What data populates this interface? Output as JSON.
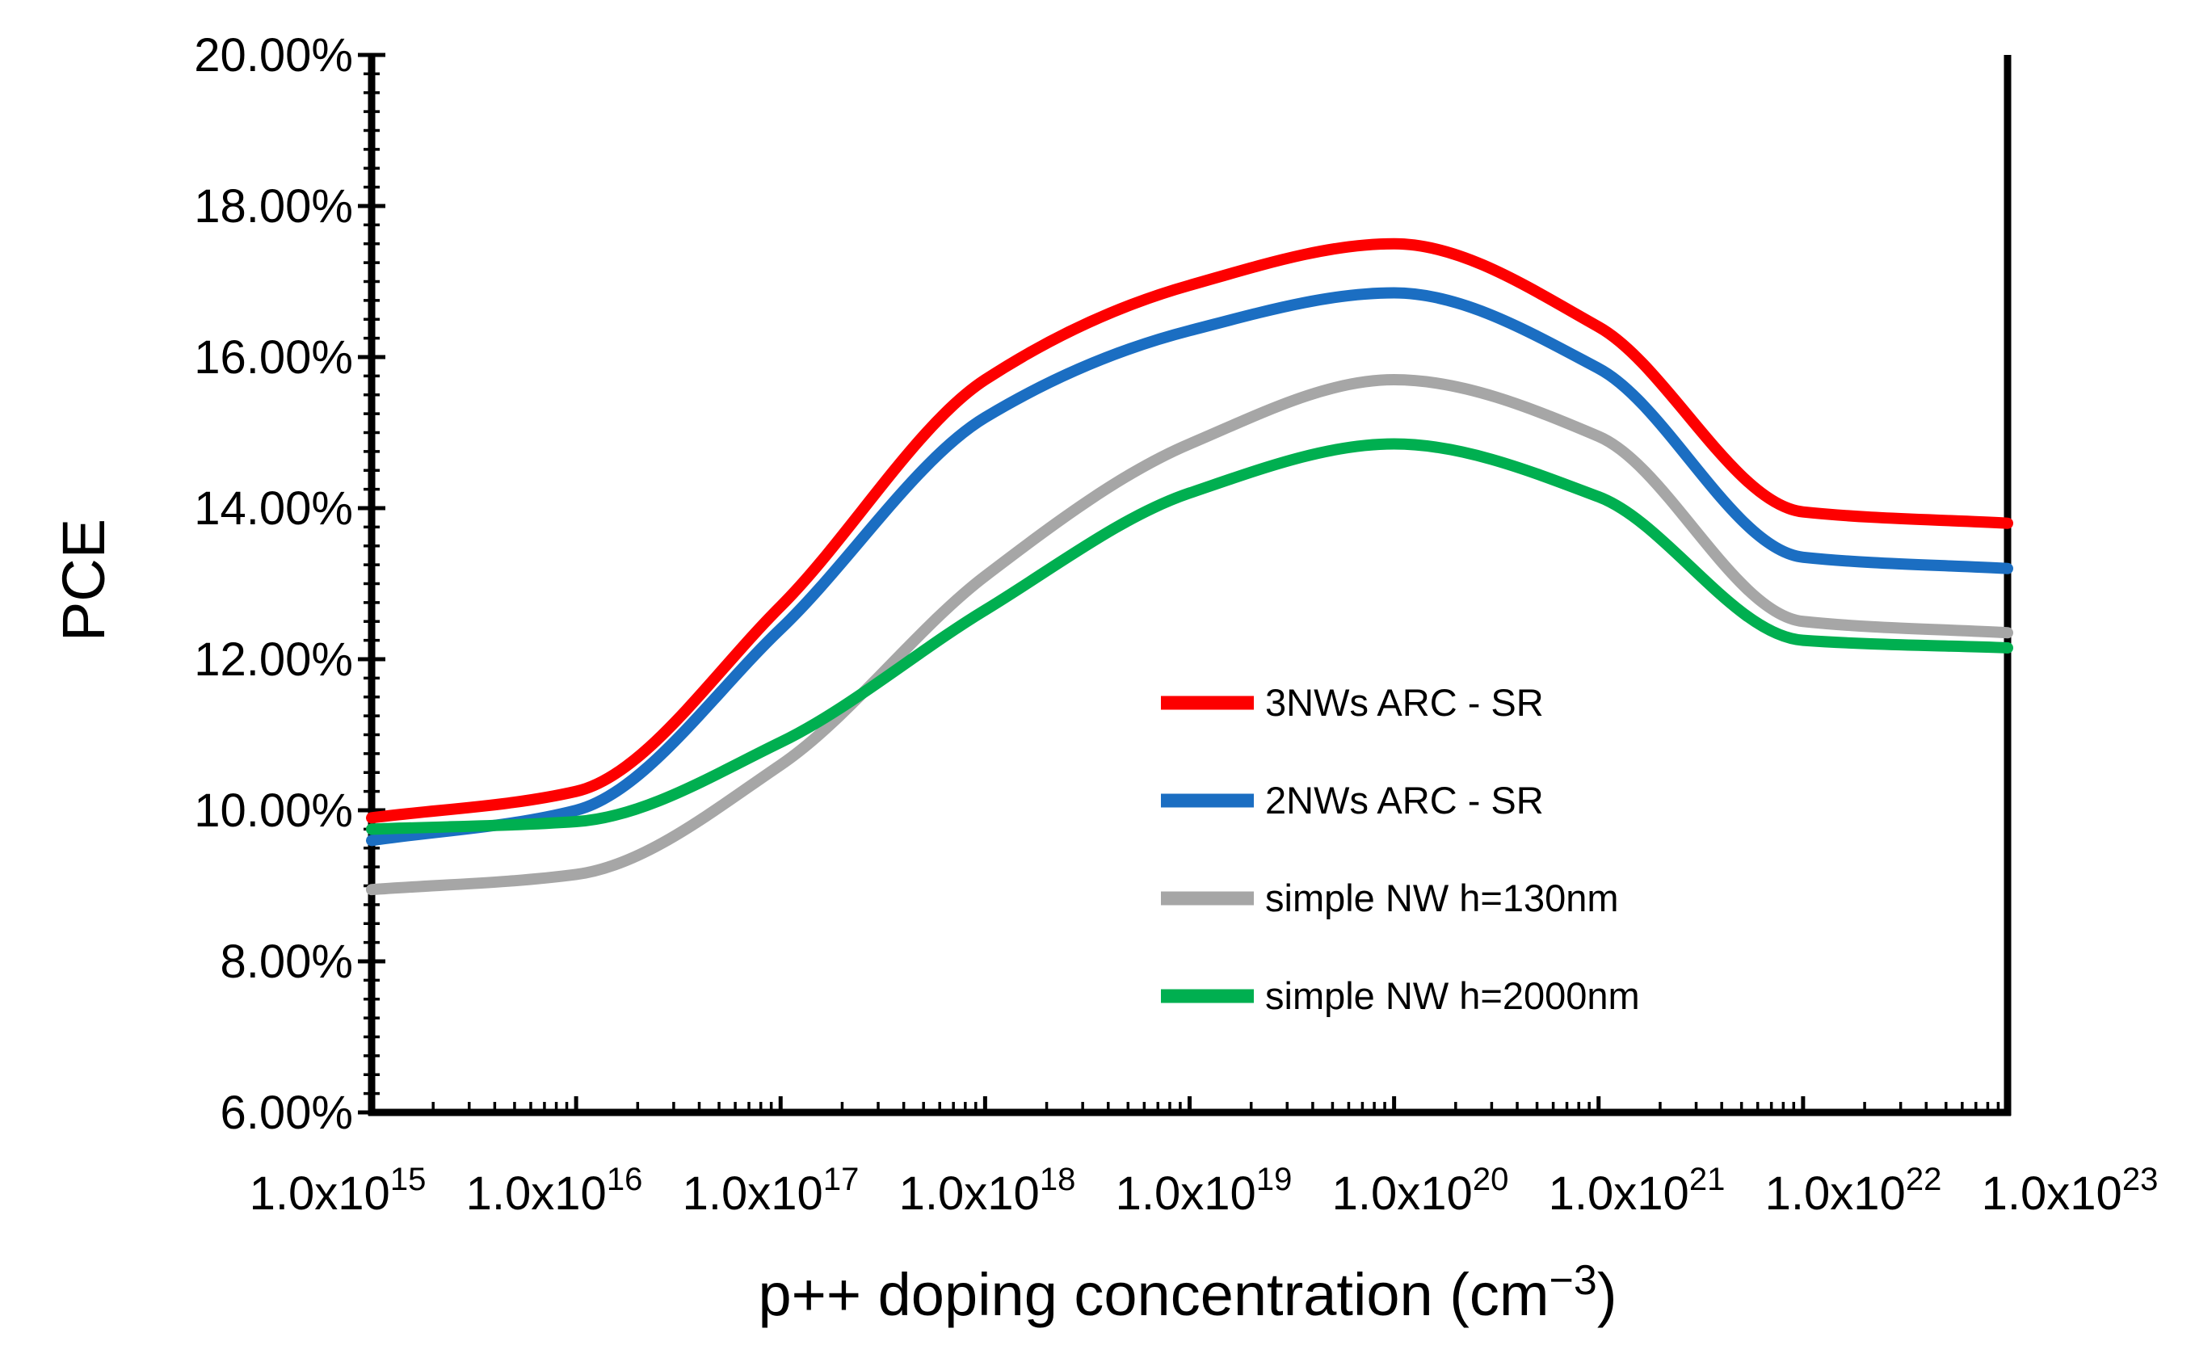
{
  "page": {
    "background": "#ffffff"
  },
  "chart_data": {
    "type": "line",
    "title": "",
    "x_axis": {
      "scale": "log",
      "tick_label_base": "1.0x10",
      "tick_exponents": [
        "15",
        "16",
        "17",
        "18",
        "19",
        "20",
        "21",
        "22",
        "23"
      ],
      "title_main": "p++ doping concentration (cm",
      "title_sup": "−3",
      "title_end": ")",
      "range_exponents": [
        15,
        23
      ],
      "minor_ticks": "log-decades"
    },
    "y_axis": {
      "title": "PCE",
      "unit": "%",
      "min": 6,
      "max": 20,
      "major_step": 2,
      "minor_step": 0.25,
      "tick_labels": [
        "20.00%",
        "18.00%",
        "16.00%",
        "14.00%",
        "12.00%",
        "10.00%",
        "8.00%",
        "6.00%"
      ],
      "grid": false
    },
    "x_values": [
      1000000000000000.0,
      1e+16,
      1e+17,
      1e+18,
      1e+19,
      1e+20,
      1e+21,
      1e+22,
      1e+23
    ],
    "series": [
      {
        "name": "3NWs ARC - SR",
        "color": "#fd0000",
        "values": [
          9.9,
          10.25,
          12.7,
          15.7,
          16.95,
          17.5,
          16.4,
          13.95,
          13.8
        ]
      },
      {
        "name": "2NWs ARC - SR",
        "color": "#1b6ec2",
        "values": [
          9.6,
          10.0,
          12.4,
          15.2,
          16.35,
          16.85,
          15.85,
          13.35,
          13.2
        ]
      },
      {
        "name": "simple NW h=130nm",
        "color": "#a6a6a6",
        "values": [
          8.95,
          9.15,
          10.6,
          13.1,
          14.85,
          15.7,
          14.95,
          12.5,
          12.35
        ]
      },
      {
        "name": "simple NW h=2000nm",
        "color": "#00af50",
        "values": [
          9.75,
          9.85,
          10.9,
          12.65,
          14.2,
          14.85,
          14.15,
          12.25,
          12.15
        ]
      }
    ],
    "legend": {
      "position": "inside-right",
      "entries": [
        "3NWs ARC - SR",
        "2NWs ARC - SR",
        "simple NW h=130nm",
        "simple NW h=2000nm"
      ]
    }
  }
}
